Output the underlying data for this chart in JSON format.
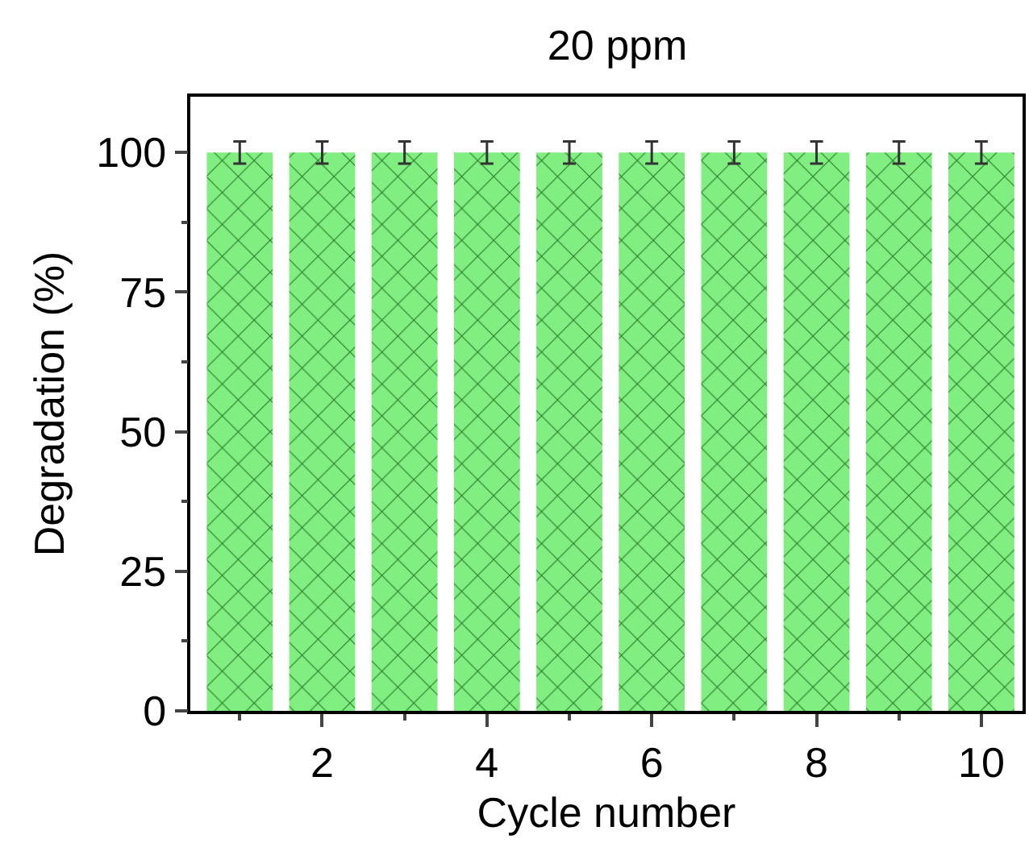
{
  "chart_data": {
    "type": "bar",
    "title": "20 ppm",
    "xlabel": "Cycle number",
    "ylabel": "Degradation (%)",
    "x": [
      1,
      2,
      3,
      4,
      5,
      6,
      7,
      8,
      9,
      10
    ],
    "values": [
      100,
      100,
      100,
      100,
      100,
      100,
      100,
      100,
      100,
      100
    ],
    "errors": [
      2,
      2,
      2,
      2,
      2,
      2,
      2,
      2,
      2,
      2
    ],
    "color": "#80ee80",
    "xlim": [
      0.4,
      10.5
    ],
    "xticks": [
      2,
      4,
      6,
      8,
      10
    ],
    "ylim": [
      0,
      110
    ],
    "yticks": [
      0,
      25,
      50,
      75,
      100
    ]
  }
}
